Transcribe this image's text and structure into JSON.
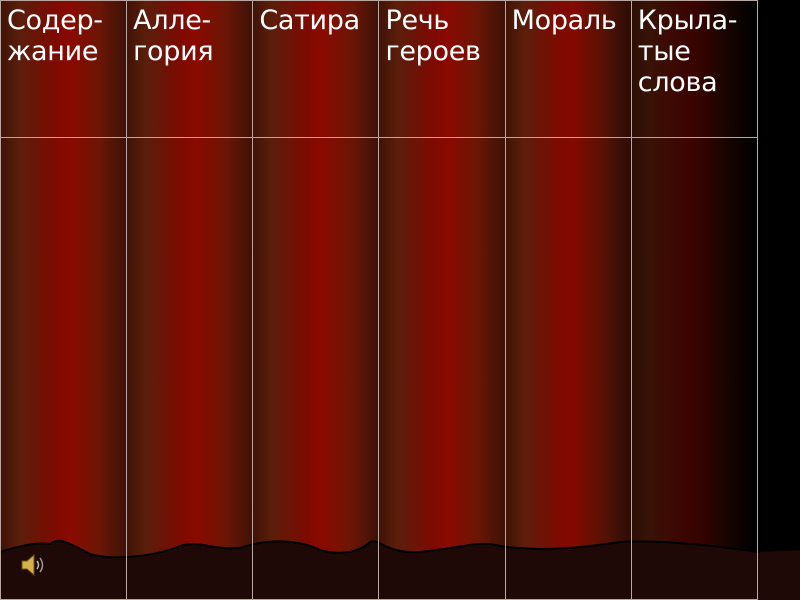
{
  "table": {
    "header": [
      "Содер-\nжание",
      "Алле-\nгория",
      "Сатира",
      "Речь\nгероев",
      "Мораль",
      "Крыла-\nтые\nслова"
    ]
  }
}
